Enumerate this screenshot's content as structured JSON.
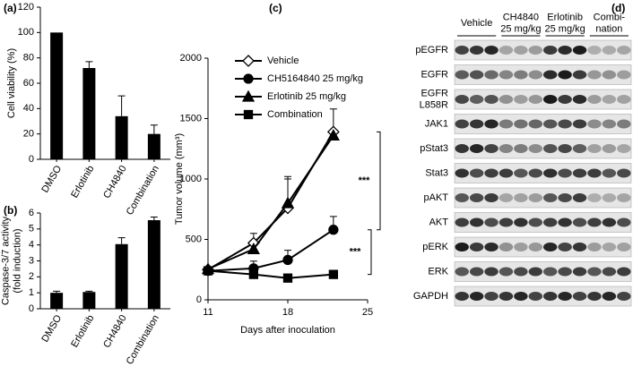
{
  "chart_data": [
    {
      "type": "bar",
      "title": "(a)",
      "y_label": "Cell viability (%)",
      "categories": [
        "DMSO",
        "Erlotinib",
        "CH4840",
        "Combination"
      ],
      "values": [
        100,
        72,
        34,
        20
      ],
      "errors": [
        null,
        5,
        16,
        7
      ],
      "color": "#000000",
      "ylim": [
        0,
        120
      ],
      "yticks": [
        0,
        20,
        40,
        60,
        80,
        100,
        120
      ]
    },
    {
      "type": "bar",
      "title": "(b)",
      "y_label": [
        "Caspase-3/7 activity",
        "(fold induction)"
      ],
      "categories": [
        "DMSO",
        "Erlotinib",
        "CH4840",
        "Combination"
      ],
      "values": [
        1.0,
        1.05,
        4.05,
        5.55
      ],
      "errors": [
        0.1,
        0.05,
        0.4,
        0.2
      ],
      "color": "#000000",
      "ylim": [
        0,
        6
      ],
      "yticks": [
        0,
        1,
        2,
        3,
        4,
        5,
        6
      ]
    },
    {
      "type": "line",
      "title": "(c)",
      "y_label": "Tumor volume (mm³)",
      "x_label": "Days after inoculation",
      "x": [
        11,
        15,
        18,
        22
      ],
      "series": [
        {
          "name": "Vehicle",
          "color": "#000000",
          "marker": "open-diamond",
          "values": [
            250,
            470,
            760,
            1390
          ],
          "errors": [
            null,
            80,
            260,
            190
          ]
        },
        {
          "name": "CH5164840 25 mg/kg",
          "color": "#000000",
          "marker": "circle",
          "values": [
            240,
            260,
            330,
            580
          ],
          "errors": [
            null,
            60,
            80,
            110
          ]
        },
        {
          "name": "Erlotinib 25 mg/kg",
          "color": "#000000",
          "marker": "triangle",
          "values": [
            255,
            420,
            800,
            1360
          ],
          "errors": [
            null,
            null,
            200,
            null
          ]
        },
        {
          "name": "Combination",
          "color": "#000000",
          "marker": "square",
          "values": [
            240,
            210,
            180,
            210
          ],
          "errors": [
            null,
            30,
            20,
            20
          ]
        }
      ],
      "xlim": [
        11,
        25
      ],
      "xticks": [
        11,
        18,
        25
      ],
      "ylim": [
        0,
        2000
      ],
      "yticks": [
        0,
        500,
        1000,
        1500,
        2000
      ],
      "annotations": [
        "***",
        "***"
      ]
    }
  ],
  "blot": {
    "title": "(d)",
    "groups": [
      [
        "Vehicle"
      ],
      [
        "CH4840",
        "25 mg/kg"
      ],
      [
        "Erlotinib",
        "25 mg/kg"
      ],
      [
        "Combi-",
        "nation"
      ]
    ],
    "rows": [
      [
        "pEGFR"
      ],
      [
        "EGFR"
      ],
      [
        "EGFR",
        "L858R"
      ],
      [
        "JAK1"
      ],
      [
        "pStat3"
      ],
      [
        "Stat3"
      ],
      [
        "pAKT"
      ],
      [
        "AKT"
      ],
      [
        "pERK"
      ],
      [
        "ERK"
      ],
      [
        "GAPDH"
      ]
    ]
  }
}
